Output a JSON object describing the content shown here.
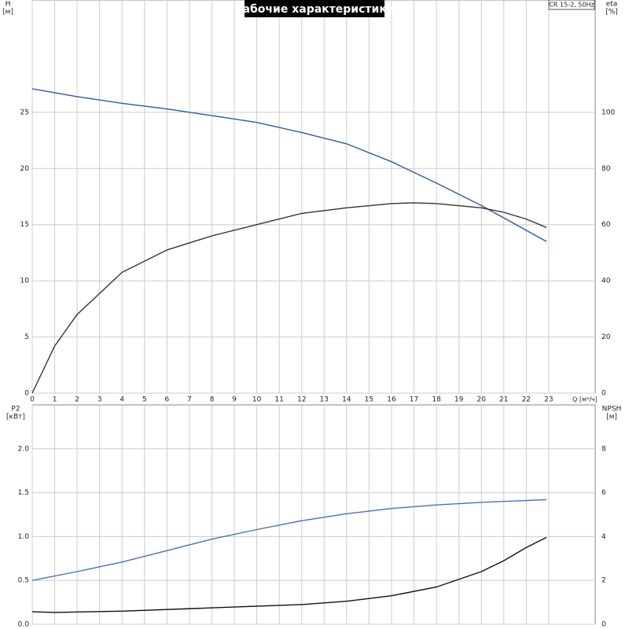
{
  "chart_data": [
    {
      "type": "line",
      "title": "Рабочие характеристики",
      "note": "CR 15-2, 50Hz",
      "y_label": "H",
      "y_unit": "[м]",
      "y2_label": "eta",
      "y2_unit": "[%]",
      "x_label": "Q [м³/ч]",
      "xlim": [
        0,
        25
      ],
      "xticks": [
        0,
        1,
        2,
        3,
        4,
        5,
        6,
        7,
        8,
        9,
        10,
        11,
        12,
        13,
        14,
        15,
        16,
        17,
        18,
        19,
        20,
        21,
        22,
        23
      ],
      "ylim": [
        0,
        35
      ],
      "yticks": [
        0,
        5,
        10,
        15,
        20,
        25
      ],
      "y2lim": [
        0,
        140
      ],
      "y2ticks": [
        0,
        20,
        40,
        60,
        80,
        100
      ],
      "grid": true,
      "series": [
        {
          "name": "H",
          "color": "#2b5b9b",
          "x": [
            0,
            2,
            4,
            6,
            8,
            10,
            12,
            14,
            16,
            18,
            20,
            22.9
          ],
          "values": [
            27.1,
            26.4,
            25.8,
            25.3,
            24.7,
            24.1,
            23.2,
            22.2,
            20.6,
            18.7,
            16.7,
            13.5
          ]
        },
        {
          "name": "eta",
          "color": "#333333",
          "axis": "y2",
          "x": [
            0,
            1,
            2,
            4,
            6,
            8,
            10,
            12,
            14,
            16,
            17,
            18,
            20,
            21,
            22,
            22.9
          ],
          "values": [
            0,
            16.8,
            28,
            43,
            51,
            56,
            60,
            64,
            66,
            67.5,
            67.8,
            67.5,
            66,
            64.4,
            62,
            59
          ]
        }
      ]
    },
    {
      "type": "line",
      "y_label": "P2",
      "y_unit": "[кВт]",
      "y2_label": "NPSH",
      "y2_unit": "[м]",
      "xlim": [
        0,
        25
      ],
      "ylim": [
        0,
        2.5
      ],
      "yticks": [
        {
          "value": 0,
          "label": "0.0"
        },
        0.5,
        {
          "value": 1,
          "label": "1.0"
        },
        1.5,
        {
          "value": 2,
          "label": "2.0"
        }
      ],
      "y2lim": [
        0,
        10
      ],
      "y2ticks": [
        0,
        2,
        4,
        6,
        8
      ],
      "grid": true,
      "series": [
        {
          "name": "P2",
          "color": "#4a72b0",
          "x": [
            0,
            2,
            4,
            6,
            8,
            10,
            12,
            14,
            16,
            18,
            20,
            22.9
          ],
          "values": [
            0.5,
            0.6,
            0.71,
            0.84,
            0.97,
            1.08,
            1.18,
            1.26,
            1.32,
            1.36,
            1.39,
            1.42
          ]
        },
        {
          "name": "NPSH",
          "color": "#111111",
          "axis": "y2",
          "x": [
            0,
            1,
            4,
            8,
            12,
            14,
            16,
            18,
            20,
            21,
            22,
            22.9
          ],
          "values": [
            0.57,
            0.54,
            0.6,
            0.75,
            0.9,
            1.05,
            1.3,
            1.7,
            2.4,
            2.9,
            3.5,
            3.96
          ]
        }
      ]
    }
  ]
}
